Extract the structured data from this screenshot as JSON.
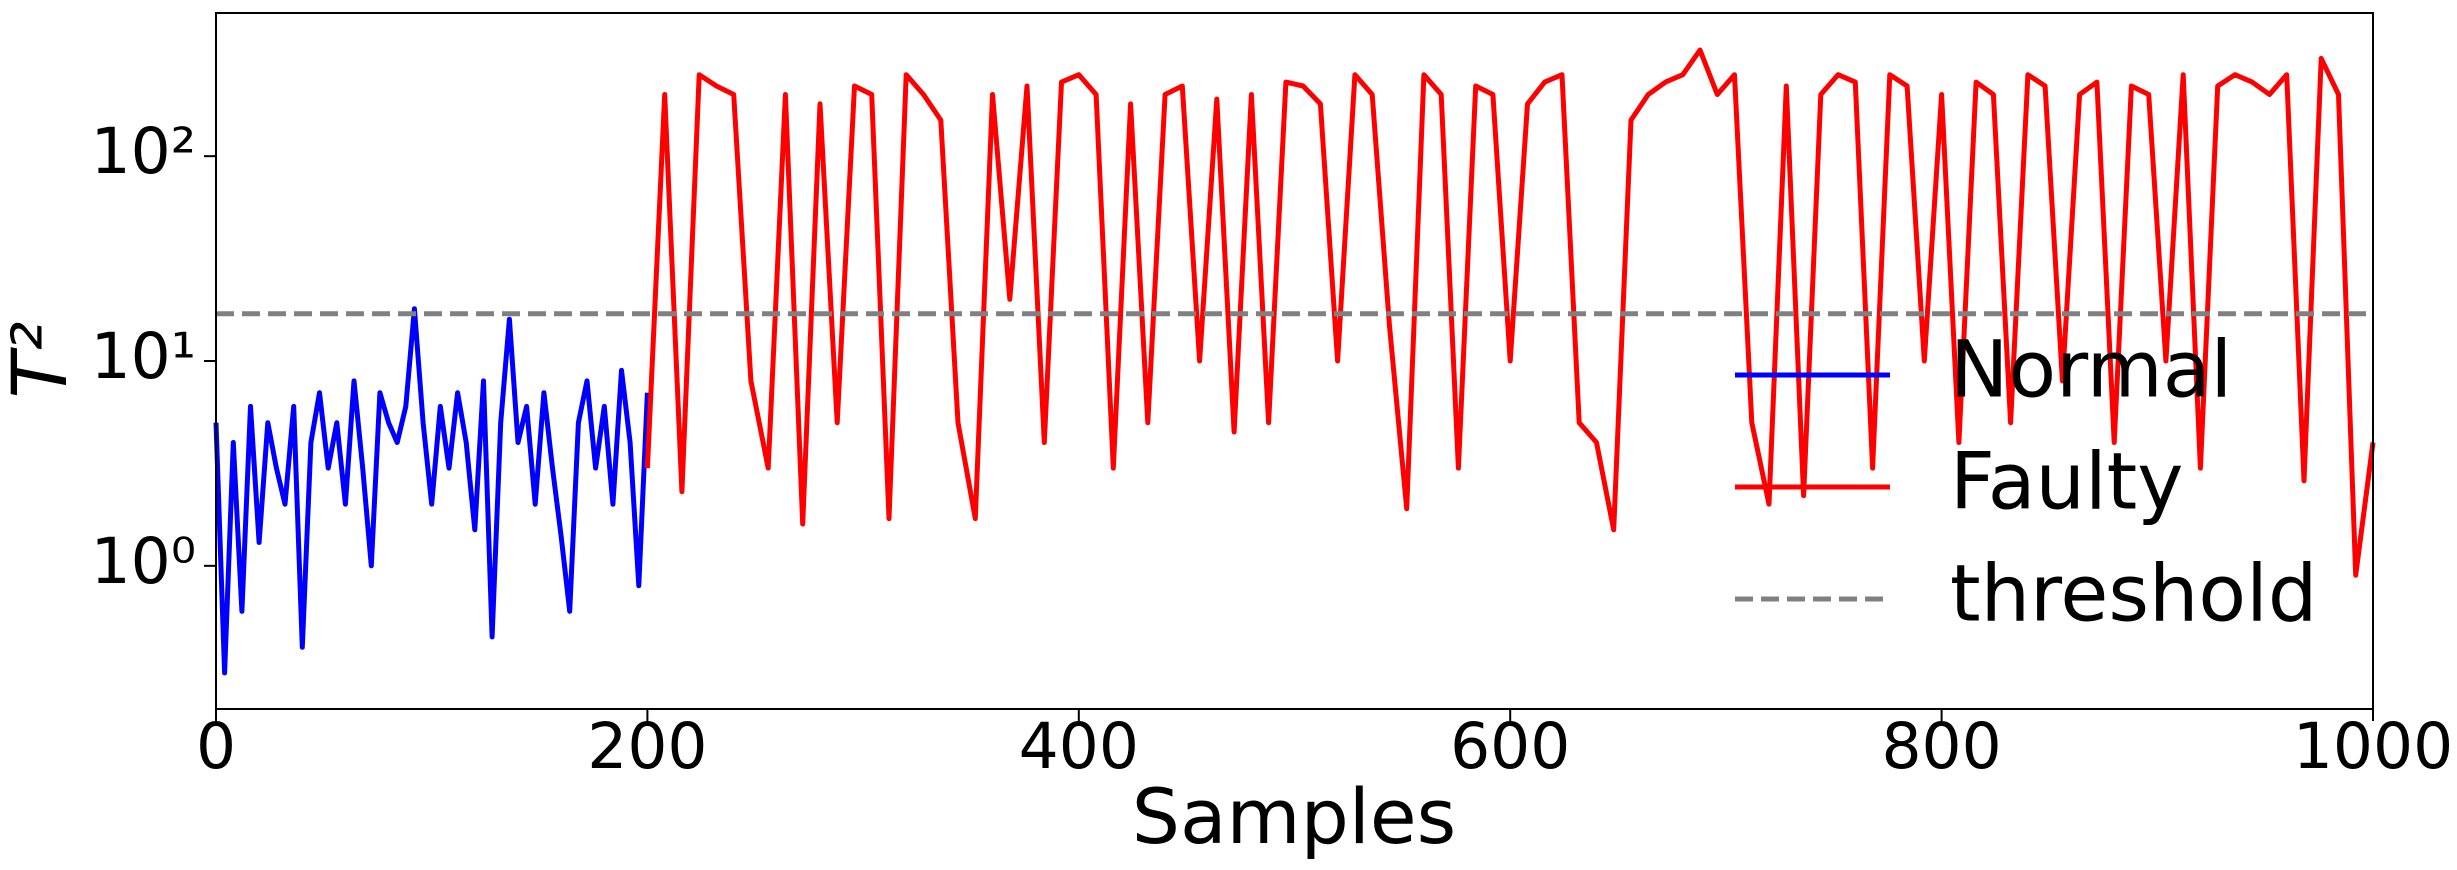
{
  "chart_data": {
    "type": "line",
    "xlabel": "Samples",
    "ylabel": "T²",
    "xlim": [
      0,
      1000
    ],
    "xticks": [
      0,
      200,
      400,
      600,
      800,
      1000
    ],
    "ylim": [
      0.2,
      500
    ],
    "yscale": "log",
    "yticks": [
      {
        "value": 1,
        "label": "10⁰"
      },
      {
        "value": 10,
        "label": "10¹"
      },
      {
        "value": 100,
        "label": "10²"
      }
    ],
    "legend": "lower right",
    "series": [
      {
        "name": "Normal",
        "color": "#0000ff",
        "style": "solid",
        "x": [
          0,
          4,
          8,
          12,
          16,
          20,
          24,
          28,
          32,
          36,
          40,
          44,
          48,
          52,
          56,
          60,
          64,
          68,
          72,
          76,
          80,
          84,
          88,
          92,
          96,
          100,
          104,
          108,
          112,
          116,
          120,
          124,
          128,
          132,
          136,
          140,
          144,
          148,
          152,
          156,
          160,
          164,
          168,
          172,
          176,
          180,
          184,
          188,
          192,
          196,
          200
        ],
        "values": [
          5,
          0.3,
          4,
          0.6,
          6,
          1.3,
          5,
          3,
          2,
          6,
          0.4,
          4,
          7,
          3,
          5,
          2,
          8,
          3,
          1,
          7,
          5,
          4,
          6,
          18,
          5,
          2,
          6,
          3,
          7,
          4,
          1.5,
          8,
          0.45,
          5,
          16,
          4,
          6,
          2,
          7,
          3,
          1.4,
          0.6,
          5,
          8,
          3,
          6,
          2,
          9,
          4,
          0.8,
          7
        ]
      },
      {
        "name": "Faulty",
        "color": "#ff0000",
        "style": "solid",
        "x": [
          200,
          208,
          216,
          224,
          232,
          240,
          248,
          256,
          264,
          272,
          280,
          288,
          296,
          304,
          312,
          320,
          328,
          336,
          344,
          352,
          360,
          368,
          376,
          384,
          392,
          400,
          408,
          416,
          424,
          432,
          440,
          448,
          456,
          464,
          472,
          480,
          488,
          496,
          504,
          512,
          520,
          528,
          536,
          544,
          552,
          560,
          568,
          576,
          584,
          592,
          600,
          608,
          616,
          624,
          632,
          640,
          648,
          656,
          664,
          672,
          680,
          688,
          696,
          704,
          712,
          720,
          728,
          736,
          744,
          752,
          760,
          768,
          776,
          784,
          792,
          800,
          808,
          816,
          824,
          832,
          840,
          848,
          856,
          864,
          872,
          880,
          888,
          896,
          904,
          912,
          920,
          928,
          936,
          944,
          952,
          960,
          968,
          976,
          984,
          992,
          1000
        ],
        "values": [
          3,
          200,
          2.3,
          250,
          220,
          200,
          8,
          3,
          200,
          1.6,
          180,
          5,
          220,
          200,
          1.7,
          250,
          200,
          150,
          5,
          1.7,
          200,
          20,
          220,
          4,
          230,
          250,
          200,
          3,
          180,
          5,
          200,
          220,
          10,
          190,
          4.5,
          200,
          5,
          230,
          220,
          180,
          10,
          250,
          200,
          15,
          1.9,
          250,
          200,
          3,
          220,
          200,
          10,
          180,
          230,
          250,
          5,
          4,
          1.5,
          150,
          200,
          230,
          250,
          330,
          200,
          250,
          5,
          2,
          220,
          2.2,
          200,
          250,
          230,
          3,
          250,
          220,
          10,
          200,
          4,
          230,
          200,
          5,
          250,
          220,
          8,
          200,
          230,
          4,
          220,
          200,
          10,
          250,
          3,
          220,
          250,
          230,
          200,
          250,
          2.6,
          300,
          200,
          0.9,
          4
        ]
      },
      {
        "name": "threshold",
        "color": "#808080",
        "style": "dashed",
        "x": [
          0,
          1000
        ],
        "values": [
          17,
          17
        ]
      }
    ]
  }
}
